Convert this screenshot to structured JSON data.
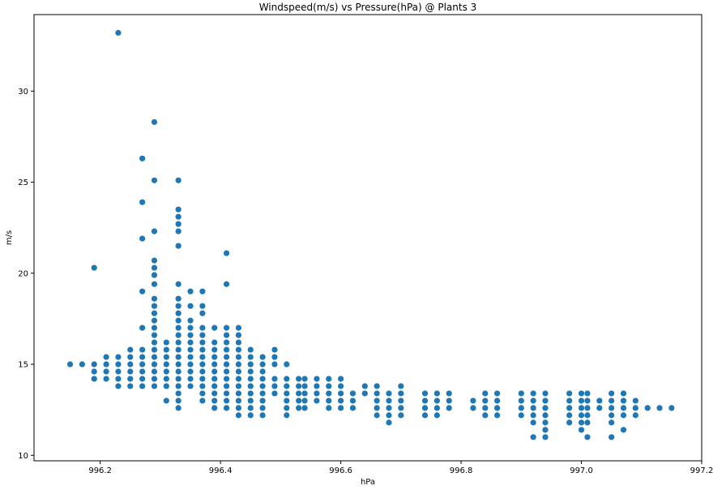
{
  "chart_data": {
    "type": "scatter",
    "title": "Windspeed(m/s) vs Pressure(hPa) @ Plants 3",
    "xlabel": "hPa",
    "ylabel": "m/s",
    "xlim": [
      996.09,
      997.2
    ],
    "ylim": [
      9.7,
      34.2
    ],
    "xticks": [
      996.2,
      996.4,
      996.6,
      996.8,
      997.0,
      997.2
    ],
    "xtick_labels": [
      "996.2",
      "996.4",
      "996.6",
      "996.8",
      "997.0",
      "997.2"
    ],
    "yticks": [
      10,
      15,
      20,
      25,
      30
    ],
    "ytick_labels": [
      "10",
      "15",
      "20",
      "25",
      "30"
    ],
    "grid": false,
    "marker_color": "#1f77b4",
    "columns": [
      {
        "x": 996.15,
        "y": [
          15.0
        ]
      },
      {
        "x": 996.17,
        "y": [
          15.0
        ]
      },
      {
        "x": 996.19,
        "y": [
          14.2,
          14.6,
          15.0,
          20.3
        ]
      },
      {
        "x": 996.21,
        "y": [
          14.2,
          14.6,
          15.0,
          15.4
        ]
      },
      {
        "x": 996.23,
        "y": [
          13.8,
          14.2,
          14.6,
          15.0,
          15.4,
          33.2
        ]
      },
      {
        "x": 996.25,
        "y": [
          13.8,
          14.2,
          14.6,
          15.0,
          15.4,
          15.8
        ]
      },
      {
        "x": 996.27,
        "y": [
          13.8,
          14.2,
          14.6,
          15.0,
          15.4,
          15.8,
          17.0,
          19.0,
          21.9,
          23.9,
          26.3
        ]
      },
      {
        "x": 996.29,
        "y": [
          13.8,
          14.2,
          14.6,
          15.0,
          15.4,
          15.8,
          16.2,
          16.6,
          17.0,
          17.4,
          17.8,
          18.2,
          18.6,
          19.4,
          19.9,
          20.3,
          20.7,
          22.3,
          25.1,
          28.3
        ]
      },
      {
        "x": 996.31,
        "y": [
          13.0,
          13.8,
          14.2,
          14.6,
          15.0,
          15.4,
          15.8,
          16.2
        ]
      },
      {
        "x": 996.33,
        "y": [
          12.6,
          13.0,
          13.4,
          13.8,
          14.2,
          14.6,
          15.0,
          15.4,
          15.8,
          16.2,
          16.6,
          17.0,
          17.4,
          17.8,
          18.2,
          18.6,
          19.4,
          21.5,
          22.3,
          22.7,
          23.1,
          23.5,
          25.1
        ]
      },
      {
        "x": 996.35,
        "y": [
          13.8,
          14.2,
          14.6,
          15.0,
          15.4,
          15.8,
          16.2,
          16.6,
          17.0,
          17.4,
          18.2,
          19.0
        ]
      },
      {
        "x": 996.37,
        "y": [
          13.0,
          13.4,
          13.8,
          14.2,
          14.6,
          15.0,
          15.4,
          15.8,
          16.2,
          16.6,
          17.0,
          17.8,
          18.2,
          19.0
        ]
      },
      {
        "x": 996.39,
        "y": [
          12.6,
          13.0,
          13.4,
          13.8,
          14.2,
          14.6,
          15.0,
          15.4,
          15.8,
          16.2,
          17.0
        ]
      },
      {
        "x": 996.41,
        "y": [
          12.6,
          13.0,
          13.4,
          13.8,
          14.2,
          14.6,
          15.0,
          15.4,
          15.8,
          16.2,
          16.6,
          17.0,
          19.4,
          21.1
        ]
      },
      {
        "x": 996.43,
        "y": [
          12.2,
          12.6,
          13.0,
          13.4,
          13.8,
          14.2,
          14.6,
          15.0,
          15.4,
          15.8,
          16.2,
          16.6,
          17.0
        ]
      },
      {
        "x": 996.45,
        "y": [
          12.2,
          12.6,
          13.0,
          13.4,
          13.8,
          14.2,
          14.6,
          15.0,
          15.4,
          15.8
        ]
      },
      {
        "x": 996.47,
        "y": [
          12.2,
          12.6,
          13.0,
          13.4,
          13.8,
          14.2,
          14.6,
          15.0,
          15.4
        ]
      },
      {
        "x": 996.49,
        "y": [
          13.4,
          13.8,
          14.2,
          15.0,
          15.4,
          15.8
        ]
      },
      {
        "x": 996.51,
        "y": [
          12.2,
          12.6,
          13.0,
          13.4,
          13.8,
          14.2,
          15.0
        ]
      },
      {
        "x": 996.53,
        "y": [
          12.6,
          13.0,
          13.4,
          13.8,
          14.2
        ]
      },
      {
        "x": 996.54,
        "y": [
          12.6,
          13.0,
          13.4,
          13.8,
          14.2
        ]
      },
      {
        "x": 996.56,
        "y": [
          13.0,
          13.4,
          13.8,
          14.2
        ]
      },
      {
        "x": 996.58,
        "y": [
          12.6,
          13.0,
          13.4,
          13.8,
          14.2
        ]
      },
      {
        "x": 996.6,
        "y": [
          12.6,
          13.0,
          13.4,
          13.8,
          14.2
        ]
      },
      {
        "x": 996.62,
        "y": [
          12.6,
          13.0,
          13.4
        ]
      },
      {
        "x": 996.64,
        "y": [
          13.4,
          13.8
        ]
      },
      {
        "x": 996.66,
        "y": [
          12.2,
          12.6,
          13.0,
          13.4,
          13.8
        ]
      },
      {
        "x": 996.68,
        "y": [
          11.8,
          12.2,
          12.6,
          13.0,
          13.4
        ]
      },
      {
        "x": 996.7,
        "y": [
          12.2,
          12.6,
          13.0,
          13.4,
          13.8
        ]
      },
      {
        "x": 996.74,
        "y": [
          12.2,
          12.6,
          13.0,
          13.4
        ]
      },
      {
        "x": 996.76,
        "y": [
          12.2,
          12.6,
          13.0,
          13.4
        ]
      },
      {
        "x": 996.78,
        "y": [
          12.6,
          13.0,
          13.4
        ]
      },
      {
        "x": 996.82,
        "y": [
          12.6,
          13.0
        ]
      },
      {
        "x": 996.84,
        "y": [
          12.2,
          12.6,
          13.0,
          13.4
        ]
      },
      {
        "x": 996.86,
        "y": [
          12.2,
          12.6,
          13.0,
          13.4
        ]
      },
      {
        "x": 996.9,
        "y": [
          12.2,
          12.6,
          13.0,
          13.4
        ]
      },
      {
        "x": 996.92,
        "y": [
          11.0,
          11.8,
          12.2,
          12.6,
          13.0,
          13.4
        ]
      },
      {
        "x": 996.94,
        "y": [
          11.0,
          11.4,
          11.8,
          12.2,
          12.6,
          13.0,
          13.4
        ]
      },
      {
        "x": 996.98,
        "y": [
          11.8,
          12.2,
          12.6,
          13.0,
          13.4
        ]
      },
      {
        "x": 997.0,
        "y": [
          11.4,
          11.8,
          12.2,
          12.6,
          13.0,
          13.4
        ]
      },
      {
        "x": 997.01,
        "y": [
          11.0,
          11.8,
          12.2,
          12.6,
          13.0,
          13.4
        ]
      },
      {
        "x": 997.03,
        "y": [
          12.6,
          13.0
        ]
      },
      {
        "x": 997.05,
        "y": [
          11.0,
          11.8,
          12.2,
          12.6,
          13.0,
          13.4
        ]
      },
      {
        "x": 997.07,
        "y": [
          11.4,
          12.2,
          12.6,
          13.0,
          13.4
        ]
      },
      {
        "x": 997.09,
        "y": [
          12.2,
          12.6,
          13.0
        ]
      },
      {
        "x": 997.11,
        "y": [
          12.6
        ]
      },
      {
        "x": 997.13,
        "y": [
          12.6
        ]
      },
      {
        "x": 997.15,
        "y": [
          12.6
        ]
      }
    ]
  }
}
